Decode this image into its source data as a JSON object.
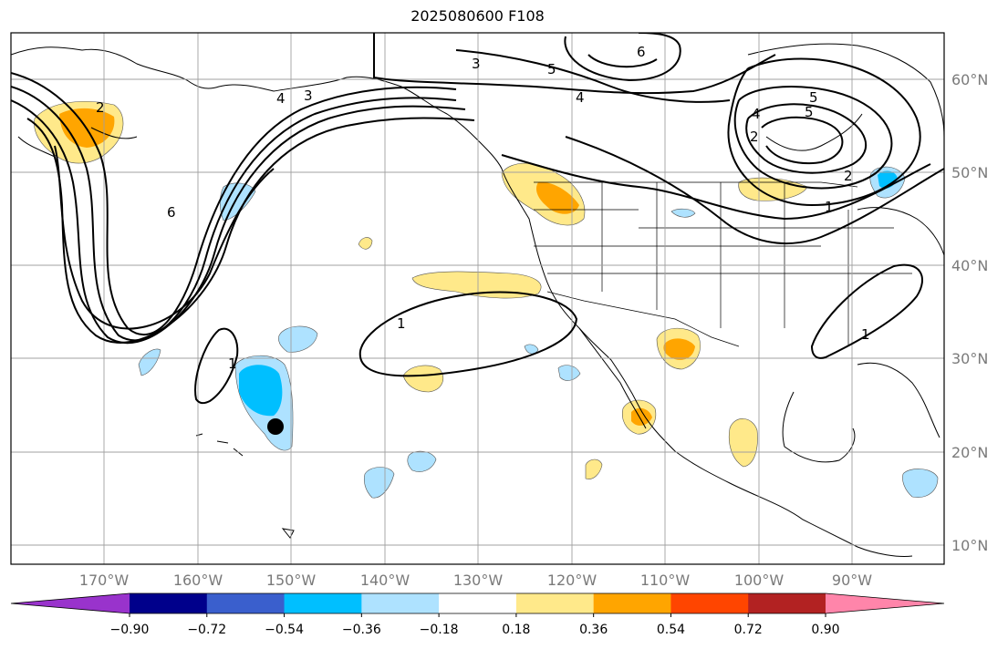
{
  "title": "2025080600 F108",
  "map": {
    "lon_labels": [
      "170°W",
      "160°W",
      "150°W",
      "140°W",
      "130°W",
      "120°W",
      "110°W",
      "100°W",
      "90°W"
    ],
    "lat_labels": [
      "60°N",
      "50°N",
      "40°N",
      "30°N",
      "20°N",
      "10°N"
    ],
    "contour_labels": [
      "3",
      "4",
      "5",
      "6",
      "2",
      "1",
      "1",
      "1",
      "3",
      "5",
      "4",
      "6",
      "4",
      "5",
      "2",
      "2",
      "1"
    ],
    "marker": "black-dot-hawaii"
  },
  "colorbar": {
    "ticks": [
      "−0.90",
      "−0.72",
      "−0.54",
      "−0.36",
      "−0.18",
      "0.18",
      "0.36",
      "0.54",
      "0.72",
      "0.90"
    ],
    "colors": [
      "#9933cc",
      "#00008b",
      "#3a5fcd",
      "#00bfff",
      "#aee2ff",
      "#ffffff",
      "#ffe98a",
      "#ffa500",
      "#ff4500",
      "#b22222",
      "#ff85aa"
    ]
  }
}
